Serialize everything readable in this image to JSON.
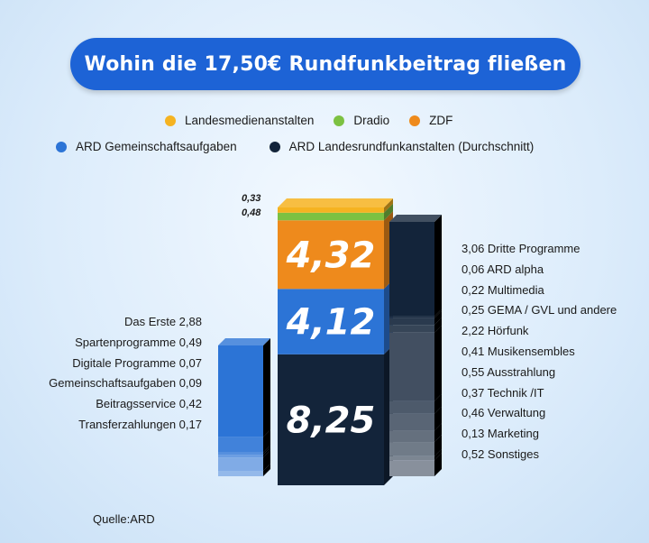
{
  "title": "Wohin die 17,50€ Rundfunkbeitrag fließen",
  "source": "Quelle:ARD",
  "colors": {
    "landesmedienanstalten": "#f5b321",
    "dradio": "#7cc142",
    "zdf": "#ee8a1c",
    "ard_gemeinschaft": "#2c74d6",
    "ard_landes": "#13243a",
    "title_bg": "#1d63d6"
  },
  "legend": [
    {
      "label": "Landesmedienanstalten",
      "color": "#f5b321"
    },
    {
      "label": "Dradio",
      "color": "#7cc142"
    },
    {
      "label": "ZDF",
      "color": "#ee8a1c"
    },
    {
      "label": "ARD Gemeinschaftsaufgaben",
      "color": "#2c74d6"
    },
    {
      "label": "ARD Landesrundfunkanstalten (Durchschnitt)",
      "color": "#13243a"
    }
  ],
  "chart_data": {
    "type": "bar",
    "title": "Wohin die 17,50€ Rundfunkbeitrag fließen",
    "total": 17.5,
    "stacked_bar": [
      {
        "name": "ARD Landesrundfunkanstalten (Durchschnitt)",
        "value": 8.25,
        "label": "8,25",
        "color": "#13243a"
      },
      {
        "name": "ARD Gemeinschaftsaufgaben",
        "value": 4.12,
        "label": "4,12",
        "color": "#2c74d6"
      },
      {
        "name": "ZDF",
        "value": 4.32,
        "label": "4,32",
        "color": "#ee8a1c"
      },
      {
        "name": "Dradio",
        "value": 0.48,
        "label": "0,48",
        "color": "#7cc142"
      },
      {
        "name": "Landesmedienanstalten",
        "value": 0.33,
        "label": "0,33",
        "color": "#f5b321"
      }
    ],
    "small_labels": [
      "0,33",
      "0,48"
    ],
    "left_breakdown": [
      {
        "label": "Das Erste 2,88",
        "value": 2.88
      },
      {
        "label": "Spartenprogramme 0,49",
        "value": 0.49
      },
      {
        "label": "Digitale Programme 0,07",
        "value": 0.07
      },
      {
        "label": "Gemeinschaftsaufgaben 0,09",
        "value": 0.09
      },
      {
        "label": "Beitragsservice 0,42",
        "value": 0.42
      },
      {
        "label": "Transferzahlungen 0,17",
        "value": 0.17
      }
    ],
    "right_breakdown": [
      {
        "label": "3,06 Dritte Programme",
        "value": 3.06
      },
      {
        "label": "0,06 ARD alpha",
        "value": 0.06
      },
      {
        "label": "0,22 Multimedia",
        "value": 0.22
      },
      {
        "label": "0,25 GEMA / GVL und andere",
        "value": 0.25
      },
      {
        "label": "2,22 Hörfunk",
        "value": 2.22
      },
      {
        "label": "0,41 Musikensembles",
        "value": 0.41
      },
      {
        "label": "0,55 Ausstrahlung",
        "value": 0.55
      },
      {
        "label": "0,37 Technik /IT",
        "value": 0.37
      },
      {
        "label": "0,46 Verwaltung",
        "value": 0.46
      },
      {
        "label": "0,13 Marketing",
        "value": 0.13
      },
      {
        "label": "0,52 Sonstiges",
        "value": 0.52
      }
    ]
  }
}
